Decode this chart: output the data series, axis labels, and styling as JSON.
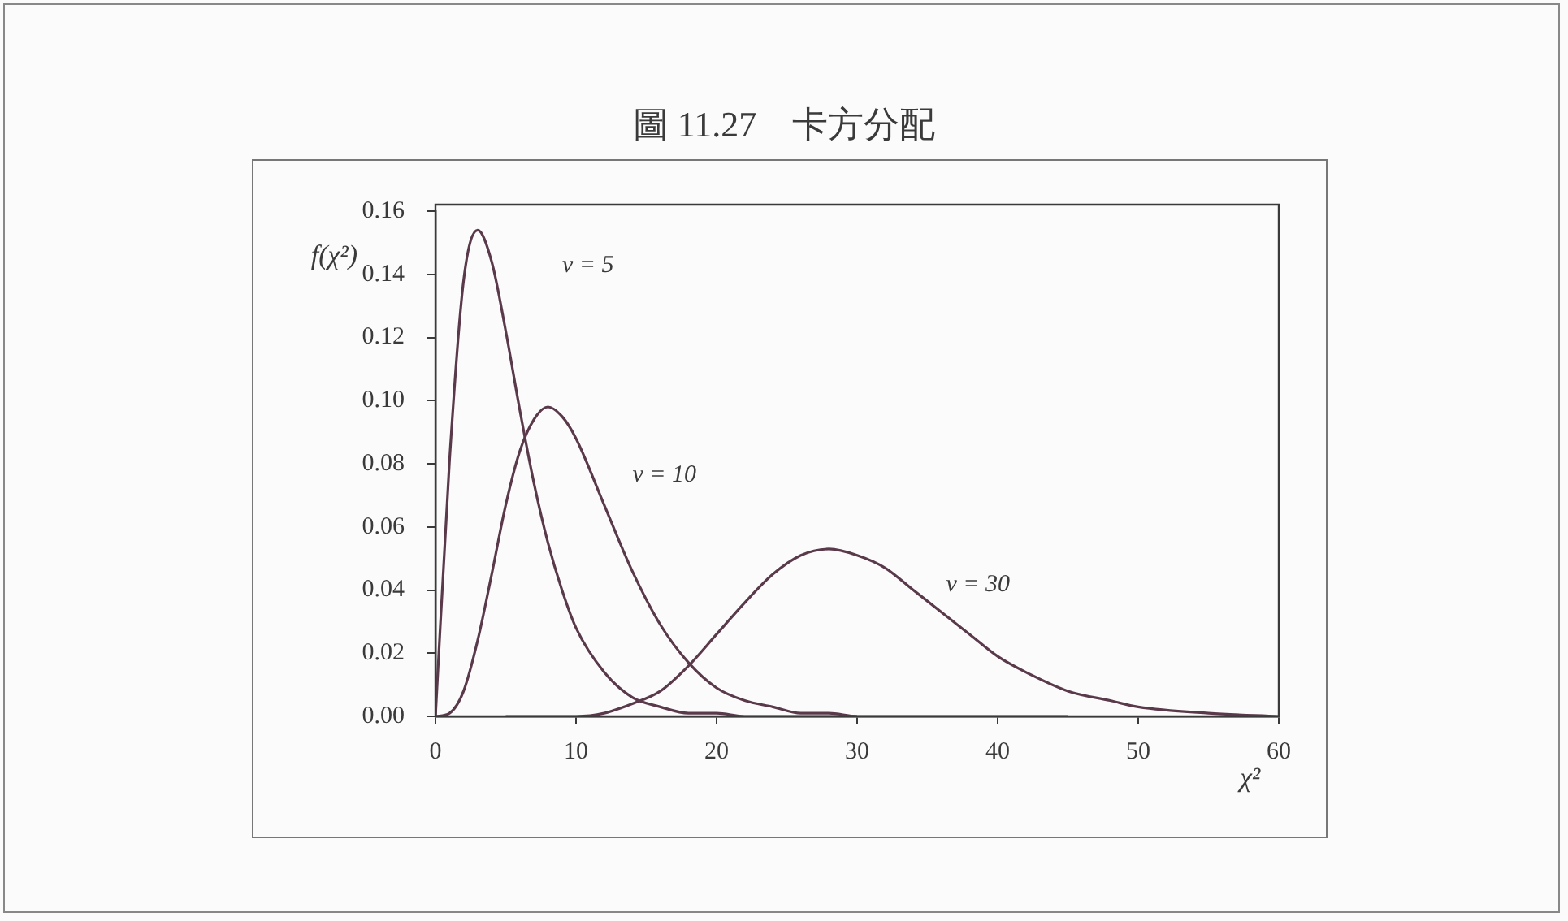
{
  "chart_data": {
    "type": "line",
    "title": "圖 11.27　卡方分配",
    "xlabel": "χ²",
    "ylabel": "f(χ²)",
    "series": [
      {
        "name": "ν = 5",
        "color": "#5a3a4a",
        "x": [
          0,
          1,
          2,
          3,
          4,
          5,
          6,
          7,
          8,
          9,
          10,
          12,
          14,
          16,
          18,
          20,
          22,
          24,
          26,
          28,
          30
        ],
        "values": [
          0,
          0.081,
          0.138,
          0.154,
          0.144,
          0.122,
          0.097,
          0.074,
          0.055,
          0.04,
          0.028,
          0.014,
          0.006,
          0.003,
          0.001,
          0.001,
          0,
          0,
          0,
          0,
          0
        ]
      },
      {
        "name": "ν = 10",
        "color": "#5a3a4a",
        "x": [
          0,
          1,
          2,
          3,
          4,
          5,
          6,
          7,
          8,
          9,
          10,
          12,
          14,
          16,
          18,
          20,
          22,
          24,
          26,
          28,
          30,
          32,
          34,
          36,
          38,
          40,
          42,
          45
        ],
        "values": [
          0,
          0.001,
          0.008,
          0.024,
          0.045,
          0.067,
          0.084,
          0.094,
          0.098,
          0.095,
          0.088,
          0.067,
          0.046,
          0.029,
          0.017,
          0.009,
          0.005,
          0.003,
          0.001,
          0.001,
          0,
          0,
          0,
          0,
          0,
          0,
          0,
          0
        ]
      },
      {
        "name": "ν = 30",
        "color": "#5a3a4a",
        "x": [
          5,
          8,
          10,
          12,
          14,
          16,
          18,
          20,
          22,
          24,
          26,
          28,
          30,
          32,
          34,
          36,
          38,
          40,
          42,
          45,
          48,
          50,
          55,
          60
        ],
        "values": [
          0,
          0,
          0,
          0.001,
          0.004,
          0.008,
          0.016,
          0.026,
          0.036,
          0.045,
          0.051,
          0.053,
          0.051,
          0.047,
          0.04,
          0.033,
          0.026,
          0.019,
          0.014,
          0.008,
          0.005,
          0.003,
          0.001,
          0
        ]
      }
    ],
    "xlim": [
      0,
      60
    ],
    "xticks": [
      0,
      10,
      20,
      30,
      40,
      50,
      60
    ],
    "ylim": [
      0,
      0.16
    ],
    "yticks": [
      {
        "value": 0,
        "label": "0.00"
      },
      {
        "value": 0.02,
        "label": "0.02"
      },
      {
        "value": 0.04,
        "label": "0.04"
      },
      {
        "value": 0.06,
        "label": "0.06"
      },
      {
        "value": 0.08,
        "label": "0.08"
      },
      {
        "value": 0.1,
        "label": "0.10"
      },
      {
        "value": 0.12,
        "label": "0.12"
      },
      {
        "value": 0.14,
        "label": "0.14"
      },
      {
        "value": 0.16,
        "label": "0.16"
      }
    ],
    "grid": false,
    "legend": false,
    "marker": "none",
    "line_style": "solid"
  }
}
